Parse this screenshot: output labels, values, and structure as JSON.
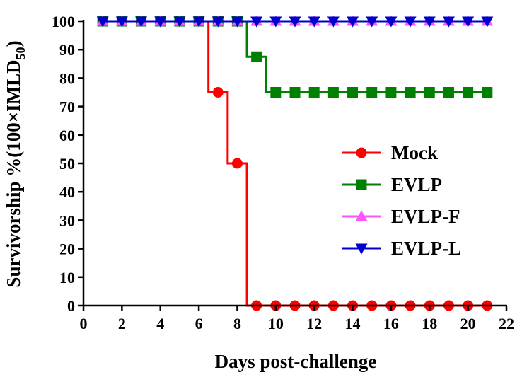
{
  "chart_data": {
    "type": "line",
    "step": true,
    "xlabel": "Days post-challenge",
    "ylabel_prefix": "Survivorship %(100×IMLD",
    "ylabel_sub": "50",
    "ylabel_suffix": ")",
    "xlim": [
      0,
      22
    ],
    "ylim": [
      0,
      100
    ],
    "x_ticks": [
      "0",
      "2",
      "4",
      "6",
      "8",
      "10",
      "12",
      "14",
      "16",
      "18",
      "20",
      "22"
    ],
    "y_ticks": [
      "0",
      "10",
      "20",
      "30",
      "40",
      "50",
      "60",
      "70",
      "80",
      "90",
      "100"
    ],
    "grid": false,
    "legend_position": "right",
    "series": [
      {
        "name": "Mock",
        "color": "#ff0000",
        "marker": "circle",
        "x": [
          1,
          2,
          3,
          4,
          5,
          6,
          7,
          8,
          9,
          10,
          11,
          12,
          13,
          14,
          15,
          16,
          17,
          18,
          19,
          20,
          21
        ],
        "y": [
          100,
          100,
          100,
          100,
          100,
          100,
          75,
          50,
          0,
          0,
          0,
          0,
          0,
          0,
          0,
          0,
          0,
          0,
          0,
          0,
          0
        ],
        "steps": [
          [
            1,
            100
          ],
          [
            6.5,
            100
          ],
          [
            6.5,
            75
          ],
          [
            7.5,
            75
          ],
          [
            7.5,
            50
          ],
          [
            8.5,
            50
          ],
          [
            8.5,
            0
          ],
          [
            21,
            0
          ]
        ]
      },
      {
        "name": "EVLP",
        "color": "#008000",
        "marker": "square",
        "x": [
          1,
          2,
          3,
          4,
          5,
          6,
          7,
          8,
          9,
          10,
          11,
          12,
          13,
          14,
          15,
          16,
          17,
          18,
          19,
          20,
          21
        ],
        "y": [
          100,
          100,
          100,
          100,
          100,
          100,
          100,
          100,
          87.5,
          75,
          75,
          75,
          75,
          75,
          75,
          75,
          75,
          75,
          75,
          75,
          75
        ],
        "steps": [
          [
            1,
            100
          ],
          [
            8.5,
            100
          ],
          [
            8.5,
            87.5
          ],
          [
            9.5,
            87.5
          ],
          [
            9.5,
            75
          ],
          [
            21,
            75
          ]
        ]
      },
      {
        "name": "EVLP-F",
        "color": "#ff55ff",
        "marker": "triangle-up",
        "x": [
          1,
          2,
          3,
          4,
          5,
          6,
          7,
          8,
          9,
          10,
          11,
          12,
          13,
          14,
          15,
          16,
          17,
          18,
          19,
          20,
          21
        ],
        "y": [
          100,
          100,
          100,
          100,
          100,
          100,
          100,
          100,
          100,
          100,
          100,
          100,
          100,
          100,
          100,
          100,
          100,
          100,
          100,
          100,
          100
        ],
        "steps": [
          [
            1,
            100
          ],
          [
            21,
            100
          ]
        ]
      },
      {
        "name": "EVLP-L",
        "color": "#0000cc",
        "marker": "triangle-down",
        "x": [
          1,
          2,
          3,
          4,
          5,
          6,
          7,
          8,
          9,
          10,
          11,
          12,
          13,
          14,
          15,
          16,
          17,
          18,
          19,
          20,
          21
        ],
        "y": [
          100,
          100,
          100,
          100,
          100,
          100,
          100,
          100,
          100,
          100,
          100,
          100,
          100,
          100,
          100,
          100,
          100,
          100,
          100,
          100,
          100
        ],
        "steps": [
          [
            1,
            100
          ],
          [
            21,
            100
          ]
        ]
      }
    ]
  }
}
